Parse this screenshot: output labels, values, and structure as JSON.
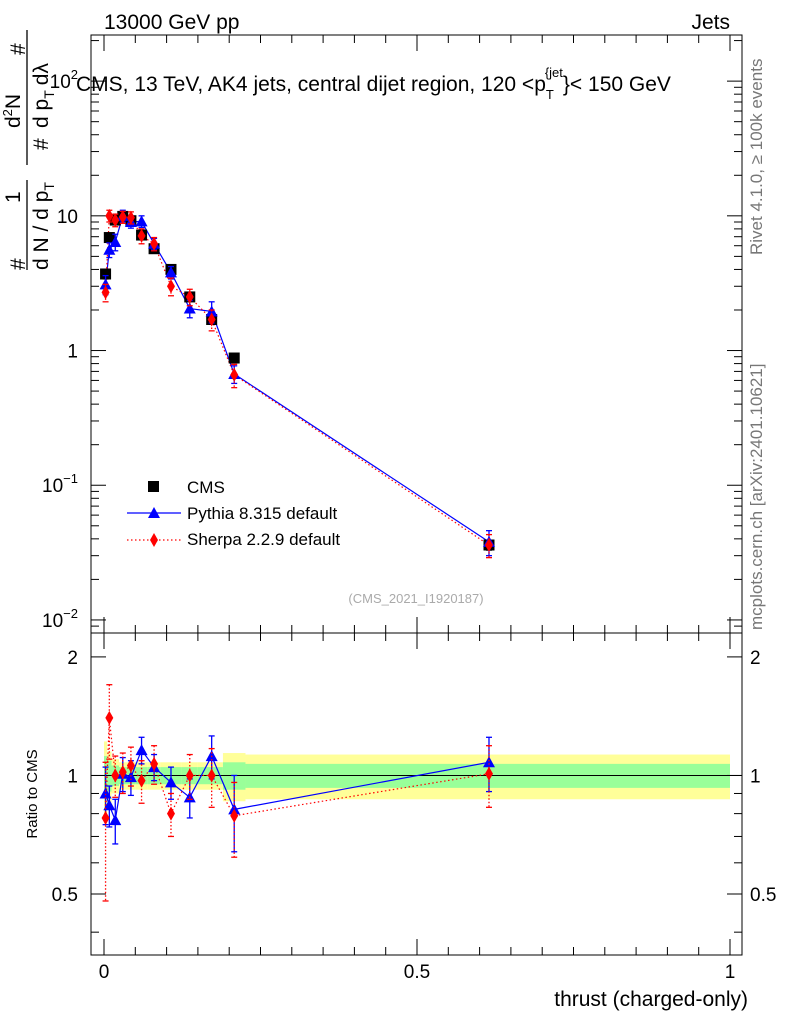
{
  "header": {
    "left": "13000 GeV pp",
    "right": "Jets"
  },
  "side_labels": {
    "rivet": "Rivet 4.1.0, ≥ 100k events",
    "mcplots": "mcplots.cern.ch [arXiv:2401.10621]"
  },
  "colors": {
    "data": "#000000",
    "pythia": "#0000ff",
    "sherpa": "#ff0000",
    "band_outer": "#ffff99",
    "band_inner": "#99ff99"
  },
  "chart_data": [
    {
      "type": "scatter",
      "title": "CMS, 13 TeV, AK4 jets, central dijet region, 120 < p_T^{jet} < 150 GeV",
      "title_parts": {
        "main": "CMS, 13 TeV, AK4 jets, central dijet region, 120 <p",
        "sub": "T",
        "sup": "{jet",
        "end": "}< 150 GeV"
      },
      "ylabel": "1/dN/dp_T d^2N/dp_T dλ",
      "ylabel_parts": {
        "frac1_num": "1",
        "frac1_den": "d N / d p",
        "frac1_den_sub": "T",
        "frac2_num_d": "d",
        "frac2_num_sup": "2",
        "frac2_num_N": "N",
        "frac2_den": "d p",
        "frac2_den_sub": "T",
        "frac2_den_end": "dλ",
        "hash": "#"
      },
      "yscale": "log",
      "ylim": [
        0.008,
        220
      ],
      "xlim": [
        -0.02,
        1.0
      ],
      "y_ticks": [
        {
          "value": 0.01,
          "base": "10",
          "exp": "−2"
        },
        {
          "value": 0.1,
          "base": "10",
          "exp": "−1"
        },
        {
          "value": 1,
          "base": "1",
          "exp": ""
        },
        {
          "value": 10,
          "base": "10",
          "exp": ""
        },
        {
          "value": 100,
          "base": "10",
          "exp": "2"
        }
      ],
      "watermark": "(CMS_2021_I1920187)",
      "legend": {
        "placement": "bottom-left",
        "entries": [
          "CMS",
          "Pythia 8.315 default",
          "Sherpa 2.2.9 default"
        ]
      },
      "series": [
        {
          "name": "CMS",
          "style": "square",
          "x": [
            0.0025,
            0.0085,
            0.018,
            0.03,
            0.043,
            0.06,
            0.08,
            0.107,
            0.137,
            0.172,
            0.208,
            0.615
          ],
          "y": [
            3.7,
            6.9,
            9.3,
            9.9,
            9.2,
            7.2,
            5.7,
            4.0,
            2.5,
            1.7,
            0.88,
            0.036
          ],
          "err": [
            0.3,
            0.4,
            0.5,
            0.5,
            0.5,
            0.4,
            0.3,
            0.25,
            0.15,
            0.1,
            0.05,
            0.003
          ]
        },
        {
          "name": "Pythia 8.315 default",
          "style": "triangle-line",
          "x": [
            0.0025,
            0.0085,
            0.018,
            0.03,
            0.043,
            0.06,
            0.08,
            0.107,
            0.137,
            0.172,
            0.208,
            0.615
          ],
          "y": [
            3.1,
            5.6,
            6.4,
            10.0,
            9.0,
            9.1,
            6.2,
            3.8,
            2.05,
            1.95,
            0.67,
            0.038
          ],
          "err": [
            0.5,
            0.7,
            0.9,
            1.0,
            0.9,
            0.9,
            0.6,
            0.4,
            0.3,
            0.35,
            0.1,
            0.008
          ]
        },
        {
          "name": "Sherpa 2.2.9 default",
          "style": "diamond-dotted",
          "x": [
            0.0025,
            0.0085,
            0.018,
            0.03,
            0.043,
            0.06,
            0.08,
            0.107,
            0.137,
            0.172,
            0.208,
            0.615
          ],
          "y": [
            2.7,
            10.0,
            9.3,
            9.8,
            9.7,
            7.1,
            6.2,
            3.0,
            2.5,
            1.7,
            0.66,
            0.036
          ],
          "err": [
            0.4,
            1.0,
            1.0,
            1.0,
            1.0,
            0.9,
            0.7,
            0.45,
            0.35,
            0.3,
            0.13,
            0.007
          ]
        }
      ]
    },
    {
      "type": "scatter",
      "ylabel": "Ratio to CMS",
      "xlabel": "thrust (charged-only)",
      "ylim": [
        0.35,
        2.3
      ],
      "xlim": [
        -0.02,
        1.0
      ],
      "y_ticks": [
        0.5,
        1,
        2
      ],
      "x_ticks": [
        0,
        0.5,
        1
      ],
      "reference": 1,
      "bands": {
        "edges": [
          0,
          0.005,
          0.012,
          0.024,
          0.036,
          0.05,
          0.07,
          0.09,
          0.124,
          0.15,
          0.19,
          0.226,
          1.0
        ],
        "inner": [
          0.12,
          0.09,
          0.06,
          0.05,
          0.05,
          0.05,
          0.05,
          0.05,
          0.05,
          0.05,
          0.08,
          0.07
        ],
        "outer": [
          0.22,
          0.15,
          0.1,
          0.08,
          0.08,
          0.08,
          0.08,
          0.08,
          0.08,
          0.08,
          0.14,
          0.13
        ]
      },
      "series": [
        {
          "name": "Pythia 8.315 default",
          "x": [
            0.0025,
            0.0085,
            0.018,
            0.03,
            0.043,
            0.06,
            0.08,
            0.107,
            0.137,
            0.172,
            0.208,
            0.615
          ],
          "y": [
            0.9,
            0.84,
            0.77,
            1.01,
            0.99,
            1.16,
            1.05,
            0.96,
            0.88,
            1.12,
            0.82,
            1.08
          ],
          "err": [
            0.15,
            0.1,
            0.1,
            0.1,
            0.1,
            0.09,
            0.08,
            0.09,
            0.1,
            0.14,
            0.18,
            0.17
          ]
        },
        {
          "name": "Sherpa 2.2.9 default",
          "x": [
            0.0025,
            0.0085,
            0.018,
            0.03,
            0.043,
            0.06,
            0.08,
            0.107,
            0.137,
            0.172,
            0.208,
            0.615
          ],
          "y": [
            0.78,
            1.4,
            1.0,
            1.02,
            1.06,
            0.97,
            1.07,
            0.8,
            1.0,
            1.0,
            0.79,
            1.01
          ],
          "err": [
            0.3,
            0.3,
            0.12,
            0.12,
            0.12,
            0.12,
            0.12,
            0.1,
            0.13,
            0.17,
            0.17,
            0.18
          ]
        }
      ]
    }
  ]
}
